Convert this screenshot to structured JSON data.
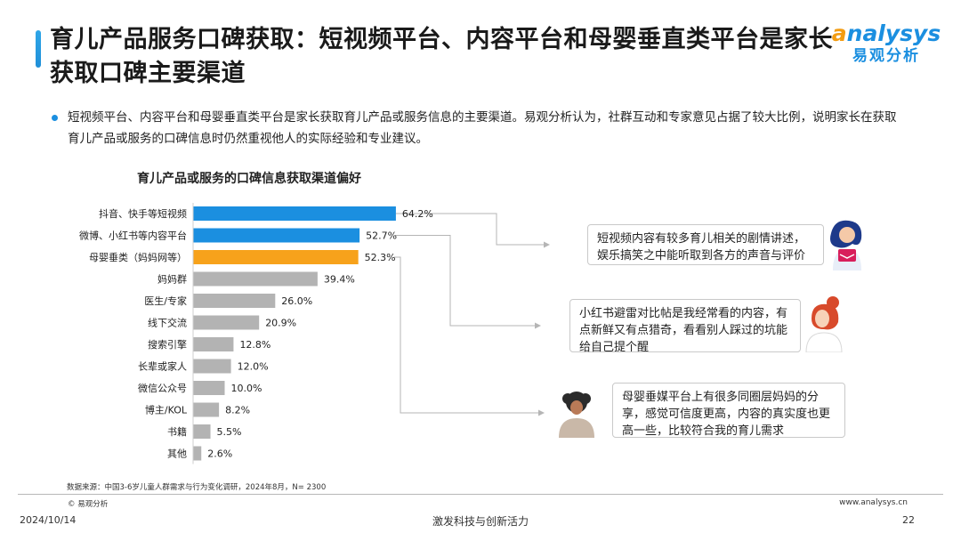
{
  "header": {
    "title": "育儿产品服务口碑获取：短视频平台、内容平台和母婴垂直类平台是家长获取口碑主要渠道",
    "logo_en_first": "a",
    "logo_en_rest": "nalysys",
    "logo_cn": "易观分析"
  },
  "summary": "短视频平台、内容平台和母婴垂直类平台是家长获取育儿产品或服务信息的主要渠道。易观分析认为，社群互动和专家意见占据了较大比例，说明家长在获取育儿产品或服务的口碑信息时仍然重视他人的实际经验和专业建议。",
  "chart_data": {
    "type": "bar",
    "orientation": "horizontal",
    "title": "育儿产品或服务的口碑信息获取渠道偏好",
    "categories": [
      "抖音、快手等短视频",
      "微博、小红书等内容平台",
      "母婴垂类（妈妈网等）",
      "妈妈群",
      "医生/专家",
      "线下交流",
      "搜索引擎",
      "长辈或家人",
      "微信公众号",
      "博主/KOL",
      "书籍",
      "其他"
    ],
    "values": [
      64.2,
      52.7,
      52.3,
      39.4,
      26.0,
      20.9,
      12.8,
      12.0,
      10.0,
      8.2,
      5.5,
      2.6
    ],
    "value_labels": [
      "64.2%",
      "52.7%",
      "52.3%",
      "39.4%",
      "26.0%",
      "20.9%",
      "12.8%",
      "12.0%",
      "10.0%",
      "8.2%",
      "5.5%",
      "2.6%"
    ],
    "bar_colors": [
      "#1b8fe0",
      "#1b8fe0",
      "#f7a21b",
      "#b3b3b3",
      "#b3b3b3",
      "#b3b3b3",
      "#b3b3b3",
      "#b3b3b3",
      "#b3b3b3",
      "#b3b3b3",
      "#b3b3b3",
      "#b3b3b3"
    ],
    "xlim": [
      0,
      100
    ],
    "grid": false
  },
  "callouts": [
    {
      "text": "短视频内容有较多育儿相关的剧情讲述，娱乐搞笑之中能听取到各方的声音与评价",
      "avatar": "woman-reading-icon"
    },
    {
      "text": "小红书避雷对比帖是我经常看的内容，有点新鲜又有点猎奇，看看别人踩过的坑能给自己提个醒",
      "avatar": "woman-red-hair-icon"
    },
    {
      "text": "母婴垂媒平台上有很多同圈层妈妈的分享，感觉可信度更高，内容的真实度也更高一些，比较符合我的育儿需求",
      "avatar": "woman-curly-hair-icon"
    }
  ],
  "colors": {
    "accent": "#1b8fe0",
    "highlight": "#f7a21b",
    "neutral": "#b3b3b3",
    "connector": "#b5b5b5"
  },
  "footer": {
    "source": "数据来源：中国3-6岁儿童人群需求与行为变化调研，2024年8月，N= 2300",
    "copyright": "© 易观分析",
    "url": "www.analysys.cn",
    "date": "2024/10/14",
    "slogan": "激发科技与创新活力",
    "page": "22"
  }
}
